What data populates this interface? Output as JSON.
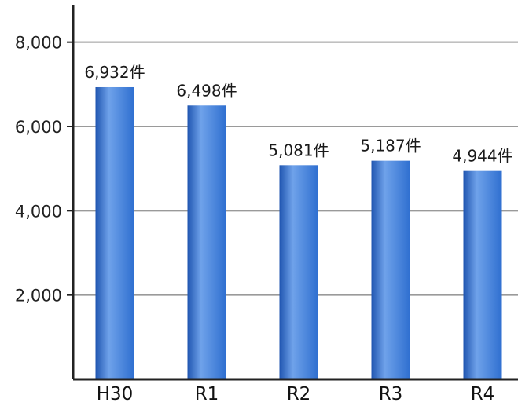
{
  "chart_data": {
    "type": "bar",
    "title": "",
    "xlabel": "",
    "ylabel": "",
    "categories": [
      "H30",
      "R1",
      "R2",
      "R3",
      "R4"
    ],
    "values": [
      6932,
      6498,
      5081,
      5187,
      4944
    ],
    "data_labels": [
      "6,932件",
      "6,498件",
      "5,081件",
      "5,187件",
      "4,944件"
    ],
    "ylim": [
      0,
      9000
    ],
    "yticks": [
      2000,
      4000,
      6000,
      8000
    ],
    "ytick_labels": [
      "2,000",
      "4,000",
      "6,000",
      "8,000"
    ],
    "grid": true,
    "legend": "none",
    "bar_color": "#2f6fd0",
    "bar_color_light": "#6fa2ea",
    "bar_color_dark": "#1f55b0",
    "grid_color": "#9a9a9a",
    "axis_color": "#222222"
  }
}
